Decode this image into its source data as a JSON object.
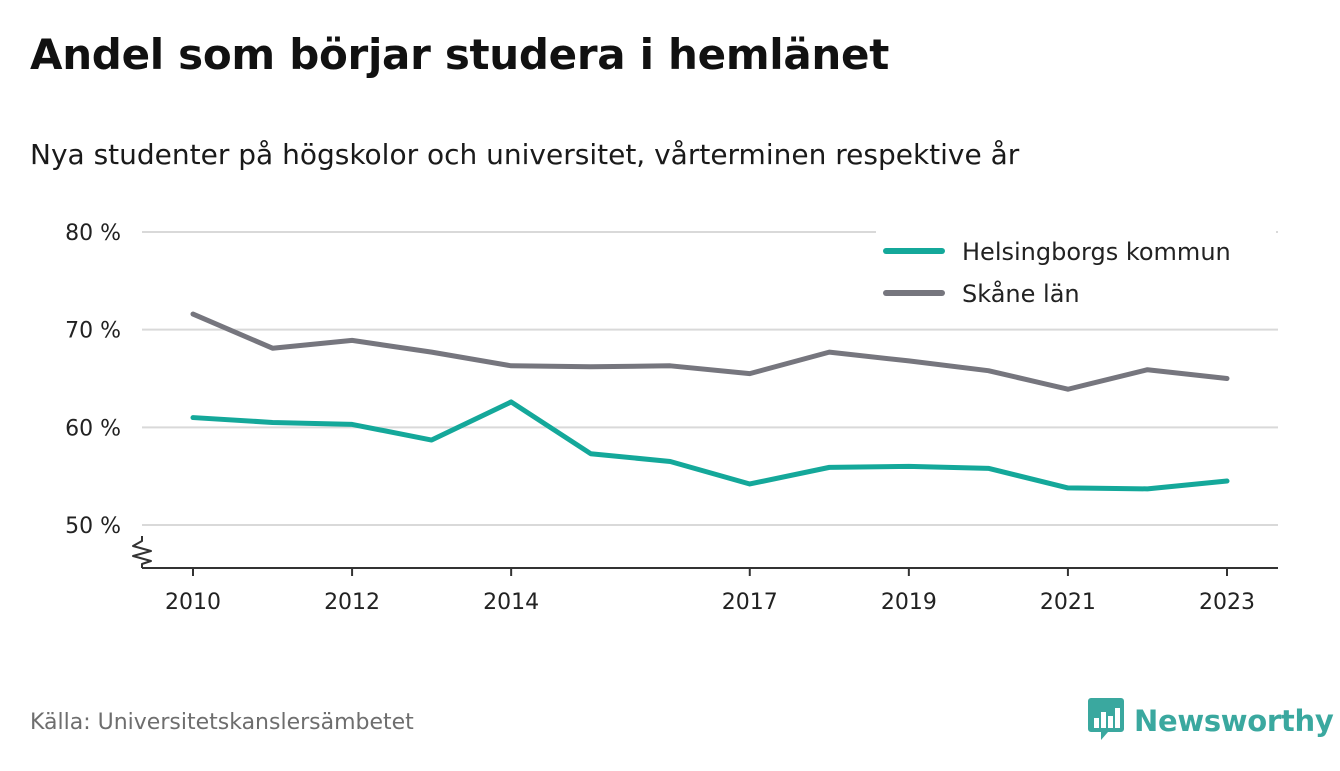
{
  "title": "Andel som börjar studera i hemlänet",
  "subtitle": "Nya studenter på högskolor och universitet, vårterminen respektive år",
  "source": "Källa: Universitetskanslersämbetet",
  "brand": {
    "name": "Newsworthy",
    "icon": "newsworthy-logo-icon",
    "color": "#3aa89f"
  },
  "chart_data": {
    "type": "line",
    "x": [
      2010,
      2011,
      2012,
      2013,
      2014,
      2015,
      2016,
      2017,
      2018,
      2019,
      2020,
      2021,
      2022,
      2023
    ],
    "xticks": [
      2010,
      2012,
      2014,
      2017,
      2019,
      2021,
      2023
    ],
    "xtick_labels": [
      "2010",
      "2012",
      "2014",
      "2017",
      "2019",
      "2021",
      "2023"
    ],
    "yticks": [
      50,
      60,
      70,
      80
    ],
    "ytick_labels": [
      "50 %",
      "60 %",
      "70 %",
      "80 %"
    ],
    "ylim": [
      50,
      80
    ],
    "axis_break": true,
    "grid": true,
    "legend_position": "top-right",
    "series": [
      {
        "name": "Helsingborgs kommun",
        "color": "#14a89a",
        "values": [
          61.0,
          60.5,
          60.3,
          58.7,
          62.6,
          57.3,
          56.5,
          54.2,
          55.9,
          56.0,
          55.8,
          53.8,
          53.7,
          54.5
        ]
      },
      {
        "name": "Skåne län",
        "color": "#76767e",
        "values": [
          71.6,
          68.1,
          68.9,
          67.7,
          66.3,
          66.2,
          66.3,
          65.5,
          67.7,
          66.8,
          65.8,
          63.9,
          65.9,
          65.0
        ]
      }
    ]
  }
}
